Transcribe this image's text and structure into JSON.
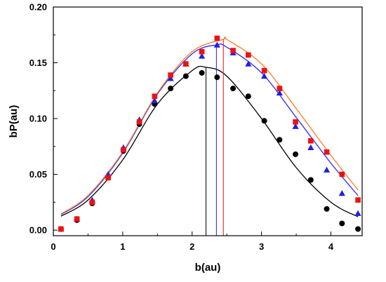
{
  "chart_data": {
    "type": "scatter",
    "title": "",
    "xlabel": "b(au)",
    "ylabel": "bP(au)",
    "xlim": [
      0,
      4.45
    ],
    "ylim": [
      -0.005,
      0.2
    ],
    "xticks": [
      0,
      1,
      2,
      3,
      4
    ],
    "xtick_labels": [
      "0",
      "1",
      "2",
      "3",
      "4"
    ],
    "yticks": [
      0.0,
      0.05,
      0.1,
      0.15,
      0.2
    ],
    "ytick_labels": [
      "0.00",
      "0.05",
      "0.10",
      "0.15",
      "0.20"
    ],
    "grid": false,
    "legend": "none",
    "series": [
      {
        "marker": "circle",
        "color": "#000000",
        "x": [
          0.11,
          0.34,
          0.56,
          0.79,
          1.01,
          1.24,
          1.46,
          1.69,
          1.91,
          2.14,
          2.36,
          2.59,
          2.81,
          3.04,
          3.26,
          3.49,
          3.71,
          3.94,
          4.16,
          4.39
        ],
        "y": [
          0.001,
          0.009,
          0.024,
          0.047,
          0.071,
          0.095,
          0.113,
          0.127,
          0.138,
          0.141,
          0.137,
          0.127,
          0.12,
          0.098,
          0.081,
          0.068,
          0.045,
          0.019,
          0.006,
          0.001
        ]
      },
      {
        "marker": "triangle",
        "color": "#1f1fe6",
        "x": [
          0.11,
          0.34,
          0.56,
          0.79,
          1.01,
          1.24,
          1.46,
          1.69,
          1.91,
          2.14,
          2.36,
          2.59,
          2.81,
          3.04,
          3.26,
          3.49,
          3.71,
          3.94,
          4.16,
          4.39
        ],
        "y": [
          0.001,
          0.01,
          0.027,
          0.05,
          0.074,
          0.099,
          0.116,
          0.136,
          0.149,
          0.156,
          0.166,
          0.159,
          0.149,
          0.138,
          0.123,
          0.093,
          0.074,
          0.054,
          0.033,
          0.015
        ]
      },
      {
        "marker": "square",
        "color": "#ee1111",
        "x": [
          0.11,
          0.34,
          0.56,
          0.79,
          1.01,
          1.24,
          1.46,
          1.69,
          1.91,
          2.14,
          2.36,
          2.59,
          2.81,
          3.04,
          3.26,
          3.49,
          3.71,
          3.94,
          4.16,
          4.39
        ],
        "y": [
          0.001,
          0.01,
          0.025,
          0.047,
          0.072,
          0.097,
          0.12,
          0.139,
          0.149,
          0.16,
          0.172,
          0.161,
          0.157,
          0.143,
          0.127,
          0.097,
          0.08,
          0.07,
          0.05,
          0.027
        ]
      }
    ],
    "fit_curves": [
      {
        "color": "#000000",
        "x": [
          0.11,
          0.5,
          1.0,
          1.5,
          2.0,
          2.2,
          2.5,
          3.0,
          3.5,
          4.0,
          4.39
        ],
        "y": [
          0.0125,
          0.027,
          0.063,
          0.113,
          0.143,
          0.146,
          0.138,
          0.1,
          0.056,
          0.025,
          0.012
        ]
      },
      {
        "color": "#2a2aff",
        "x": [
          0.11,
          0.5,
          1.0,
          1.5,
          2.0,
          2.35,
          2.5,
          3.0,
          3.5,
          4.0,
          4.39
        ],
        "y": [
          0.014,
          0.03,
          0.069,
          0.122,
          0.158,
          0.166,
          0.164,
          0.141,
          0.101,
          0.06,
          0.031
        ]
      },
      {
        "color": "#ff7a2a",
        "x": [
          0.11,
          0.5,
          1.0,
          1.5,
          2.0,
          2.45,
          2.5,
          3.0,
          3.5,
          4.0,
          4.39
        ],
        "y": [
          0.0145,
          0.031,
          0.07,
          0.123,
          0.16,
          0.171,
          0.171,
          0.149,
          0.109,
          0.067,
          0.036
        ]
      }
    ],
    "peak_markers": [
      {
        "x": 2.2,
        "y": 0.146,
        "color": "#000000"
      },
      {
        "x": 2.35,
        "y": 0.166,
        "color": "#1f1fe6"
      },
      {
        "x": 2.45,
        "y": 0.171,
        "color": "#ee1111"
      }
    ]
  }
}
